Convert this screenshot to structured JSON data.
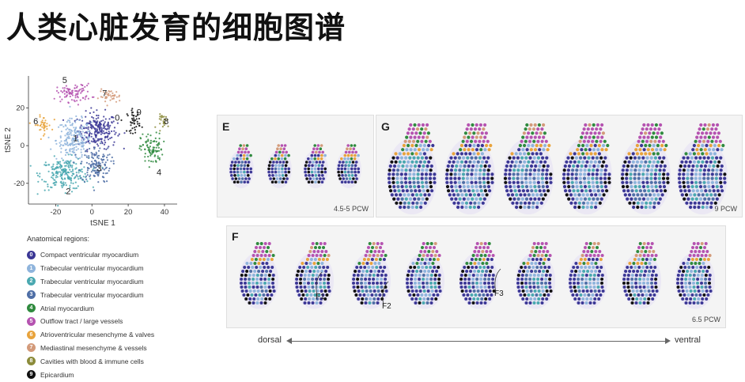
{
  "title": "人类心脏发育的细胞图谱",
  "tsne": {
    "xlabel": "tSNE 1",
    "ylabel": "tSNE 2",
    "xticks": [
      "-20",
      "0",
      "20",
      "40"
    ],
    "yticks": [
      "20",
      "0",
      "-20"
    ],
    "xlim": [
      -35,
      47
    ],
    "ylim": [
      -31,
      37
    ],
    "clusters": [
      {
        "id": "0",
        "color": "#3b3795",
        "center": [
          3,
          8
        ],
        "spread": [
          9,
          8
        ],
        "label_at": [
          14,
          15
        ]
      },
      {
        "id": "1",
        "color": "#8fb4dc",
        "center": [
          -10,
          3
        ],
        "spread": [
          8,
          9
        ],
        "label_at": [
          -9,
          4
        ]
      },
      {
        "id": "2",
        "color": "#4aa8b0",
        "center": [
          -15,
          -15
        ],
        "spread": [
          11,
          7
        ],
        "label_at": [
          -13,
          -24
        ]
      },
      {
        "id": "3",
        "color": "#4f6fa6",
        "center": [
          2,
          -10
        ],
        "spread": [
          7,
          8
        ],
        "label_at": [
          4,
          -12
        ]
      },
      {
        "id": "4",
        "color": "#2f8a3e",
        "center": [
          33,
          -2
        ],
        "spread": [
          5,
          7
        ],
        "label_at": [
          37,
          -14
        ]
      },
      {
        "id": "5",
        "color": "#b553b0",
        "center": [
          -10,
          28
        ],
        "spread": [
          8,
          4
        ],
        "label_at": [
          -15,
          35
        ]
      },
      {
        "id": "6",
        "color": "#e8a33c",
        "center": [
          -27,
          11
        ],
        "spread": [
          4,
          4
        ],
        "label_at": [
          -31,
          13
        ]
      },
      {
        "id": "7",
        "color": "#d39a7a",
        "center": [
          10,
          26
        ],
        "spread": [
          5,
          3
        ],
        "label_at": [
          7,
          28
        ]
      },
      {
        "id": "8",
        "color": "#8b8b3a",
        "center": [
          40,
          13
        ],
        "spread": [
          3,
          3
        ],
        "label_at": [
          41,
          13
        ]
      },
      {
        "id": "9",
        "color": "#111111",
        "center": [
          23,
          13
        ],
        "spread": [
          3,
          5
        ],
        "label_at": [
          26,
          18
        ]
      }
    ]
  },
  "legend": {
    "title": "Anatomical regions:",
    "items": [
      {
        "num": "0",
        "label": "Compact ventricular myocardium",
        "color": "#3b3795"
      },
      {
        "num": "1",
        "label": "Trabecular ventricular myocardium",
        "color": "#8fb4dc"
      },
      {
        "num": "2",
        "label": "Trabecular ventricular myocardium",
        "color": "#4aa8b0"
      },
      {
        "num": "3",
        "label": "Trabecular ventricular myocardium",
        "color": "#4f6fa6"
      },
      {
        "num": "4",
        "label": "Atrial myocardium",
        "color": "#2f8a3e"
      },
      {
        "num": "5",
        "label": "Outflow tract / large vessels",
        "color": "#b553b0"
      },
      {
        "num": "6",
        "label": "Atrioventricular mesenchyme & valves",
        "color": "#e8a33c"
      },
      {
        "num": "7",
        "label": "Mediastinal mesenchyme & vessels",
        "color": "#d39a7a"
      },
      {
        "num": "8",
        "label": "Cavities with blood & immune cells",
        "color": "#8b8b3a"
      },
      {
        "num": "9",
        "label": "Epicardium",
        "color": "#111111"
      }
    ]
  },
  "panels": {
    "e": {
      "label": "E",
      "caption": "4.5-5 PCW",
      "sections": 4
    },
    "g": {
      "label": "G",
      "caption": "9 PCW",
      "sections": 6
    },
    "f": {
      "label": "F",
      "caption": "6.5 PCW",
      "sections": 8,
      "markers": [
        "F1",
        "F2",
        "F3"
      ]
    }
  },
  "axis": {
    "left": "dorsal",
    "right": "ventral"
  }
}
